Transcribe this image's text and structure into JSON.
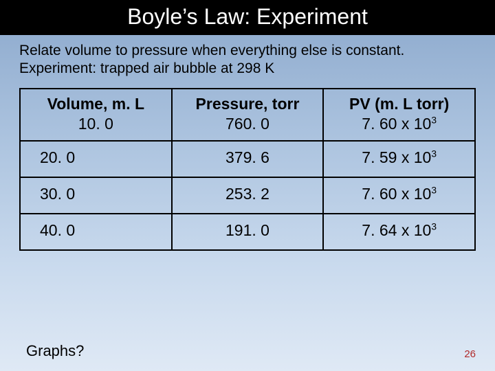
{
  "slide": {
    "title": "Boyle’s Law: Experiment",
    "intro_line1": "Relate volume to pressure when everything else is constant.",
    "intro_line2": "Experiment:  trapped air bubble at 298 K",
    "page_number": "26",
    "bottom_text": "Graphs?"
  },
  "table": {
    "columns": [
      {
        "header": "Volume, m. L",
        "first_value": "10. 0",
        "align": "center",
        "width_pct": 33.3
      },
      {
        "header": "Pressure, torr",
        "first_value": "760. 0",
        "align": "center",
        "width_pct": 33.3
      },
      {
        "header": "PV (m. L torr)",
        "first_value": "7. 60 x 10",
        "first_exp": "3",
        "align": "center",
        "width_pct": 33.3
      }
    ],
    "rows": [
      {
        "volume": "20. 0",
        "pressure": "379. 6",
        "pv": "7. 59 x 10",
        "pv_exp": "3"
      },
      {
        "volume": "30. 0",
        "pressure": "253. 2",
        "pv": "7. 60 x 10",
        "pv_exp": "3"
      },
      {
        "volume": "40. 0",
        "pressure": "191. 0",
        "pv": "7. 64 x 10",
        "pv_exp": "3"
      }
    ],
    "border_color": "#000000",
    "header_font_weight": "bold",
    "cell_fontsize_pt": 17
  },
  "colors": {
    "title_bg": "#000000",
    "title_fg": "#ffffff",
    "bg_gradient_top": "#8ba8cc",
    "bg_gradient_bottom": "#dfe9f5",
    "pagenum": "#b12a2a",
    "text": "#000000"
  },
  "typography": {
    "title_fontsize_pt": 24,
    "body_fontsize_pt": 16,
    "font_family": "Arial"
  }
}
